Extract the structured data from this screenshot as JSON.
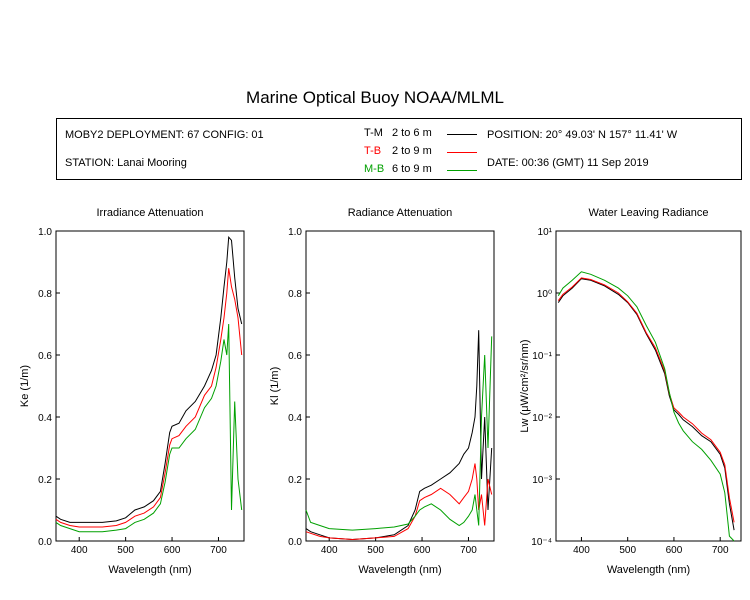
{
  "page": {
    "title": "Marine Optical Buoy NOAA/MLML"
  },
  "info": {
    "deployment": "MOBY2 DEPLOYMENT: 67 CONFIG: 01",
    "station": "STATION: Lanai Mooring",
    "position": "POSITION: 20° 49.03' N   157° 11.41' W",
    "date": "DATE: 00:36 (GMT) 11 Sep 2019",
    "legend": [
      {
        "code": "T-M",
        "depth": "2 to 6  m",
        "color": "#000000"
      },
      {
        "code": "T-B",
        "depth": "2 to 9  m",
        "color": "#ff0000"
      },
      {
        "code": "M-B",
        "depth": "6 to 9  m",
        "color": "#00a000"
      }
    ]
  },
  "chart_data": [
    {
      "type": "line",
      "title": "Irradiance Attenuation",
      "xlabel": "Wavelength (nm)",
      "ylabel": "Ke  (1/m)",
      "xlim": [
        350,
        755
      ],
      "ylim": [
        0,
        1.0
      ],
      "xticks": [
        "400",
        "500",
        "600",
        "700"
      ],
      "yticks": [
        "0.0",
        "0.2",
        "0.4",
        "0.6",
        "0.8",
        "1.0"
      ],
      "series": [
        {
          "name": "T-M",
          "color": "#000000",
          "x": [
            350,
            360,
            380,
            400,
            420,
            450,
            480,
            500,
            520,
            540,
            560,
            575,
            585,
            595,
            600,
            615,
            630,
            650,
            670,
            685,
            695,
            705,
            712,
            718,
            722,
            728,
            735,
            742,
            750
          ],
          "y": [
            0.08,
            0.07,
            0.06,
            0.06,
            0.06,
            0.06,
            0.065,
            0.075,
            0.1,
            0.11,
            0.13,
            0.16,
            0.25,
            0.35,
            0.37,
            0.38,
            0.42,
            0.45,
            0.5,
            0.55,
            0.6,
            0.72,
            0.82,
            0.9,
            0.98,
            0.97,
            0.85,
            0.75,
            0.7
          ]
        },
        {
          "name": "T-B",
          "color": "#ff0000",
          "x": [
            350,
            360,
            380,
            400,
            420,
            450,
            480,
            500,
            520,
            540,
            560,
            575,
            585,
            595,
            600,
            615,
            630,
            650,
            670,
            685,
            695,
            705,
            712,
            718,
            722,
            728,
            735,
            742,
            750
          ],
          "y": [
            0.07,
            0.06,
            0.05,
            0.045,
            0.045,
            0.045,
            0.05,
            0.06,
            0.08,
            0.09,
            0.11,
            0.14,
            0.22,
            0.31,
            0.33,
            0.34,
            0.37,
            0.4,
            0.47,
            0.5,
            0.56,
            0.65,
            0.72,
            0.8,
            0.88,
            0.82,
            0.78,
            0.72,
            0.6
          ]
        },
        {
          "name": "M-B",
          "color": "#00a000",
          "x": [
            350,
            360,
            380,
            400,
            420,
            450,
            480,
            500,
            520,
            540,
            560,
            575,
            585,
            595,
            600,
            615,
            630,
            650,
            670,
            685,
            695,
            705,
            712,
            718,
            722,
            728,
            735,
            742,
            750
          ],
          "y": [
            0.06,
            0.05,
            0.04,
            0.03,
            0.03,
            0.03,
            0.035,
            0.04,
            0.06,
            0.07,
            0.09,
            0.12,
            0.19,
            0.28,
            0.3,
            0.3,
            0.33,
            0.36,
            0.43,
            0.46,
            0.5,
            0.58,
            0.65,
            0.6,
            0.7,
            0.1,
            0.45,
            0.2,
            0.1
          ]
        }
      ]
    },
    {
      "type": "line",
      "title": "Radiance Attenuation",
      "xlabel": "Wavelength (nm)",
      "ylabel": "Kl  (1/m)",
      "xlim": [
        350,
        755
      ],
      "ylim": [
        0,
        1.0
      ],
      "xticks": [
        "400",
        "500",
        "600",
        "700"
      ],
      "yticks": [
        "0.0",
        "0.2",
        "0.4",
        "0.6",
        "0.8",
        "1.0"
      ],
      "series": [
        {
          "name": "T-M",
          "color": "#000000",
          "x": [
            350,
            360,
            380,
            400,
            450,
            500,
            540,
            570,
            585,
            595,
            605,
            620,
            640,
            660,
            680,
            690,
            700,
            708,
            714,
            718,
            722,
            728,
            735,
            742,
            750
          ],
          "y": [
            0.04,
            0.03,
            0.02,
            0.01,
            0.005,
            0.01,
            0.02,
            0.05,
            0.1,
            0.16,
            0.17,
            0.18,
            0.2,
            0.22,
            0.25,
            0.28,
            0.3,
            0.35,
            0.4,
            0.5,
            0.68,
            0.2,
            0.4,
            0.1,
            0.3
          ]
        },
        {
          "name": "T-B",
          "color": "#ff0000",
          "x": [
            350,
            360,
            380,
            400,
            450,
            500,
            540,
            570,
            585,
            595,
            605,
            620,
            640,
            660,
            680,
            690,
            700,
            708,
            714,
            718,
            722,
            728,
            735,
            742,
            750
          ],
          "y": [
            0.03,
            0.025,
            0.015,
            0.01,
            0.005,
            0.01,
            0.015,
            0.04,
            0.08,
            0.13,
            0.14,
            0.15,
            0.17,
            0.15,
            0.12,
            0.14,
            0.16,
            0.2,
            0.25,
            0.2,
            0.1,
            0.15,
            0.05,
            0.2,
            0.15
          ]
        },
        {
          "name": "M-B",
          "color": "#00a000",
          "x": [
            350,
            360,
            380,
            400,
            450,
            500,
            540,
            570,
            585,
            595,
            605,
            620,
            640,
            660,
            680,
            690,
            700,
            708,
            714,
            718,
            722,
            728,
            735,
            742,
            750
          ],
          "y": [
            0.1,
            0.06,
            0.05,
            0.04,
            0.035,
            0.04,
            0.045,
            0.055,
            0.08,
            0.1,
            0.11,
            0.12,
            0.1,
            0.07,
            0.05,
            0.06,
            0.08,
            0.1,
            0.15,
            0.1,
            0.05,
            0.4,
            0.6,
            0.3,
            0.66
          ]
        }
      ]
    },
    {
      "type": "line",
      "title": "Water Leaving Radiance",
      "xlabel": "Wavelength (nm)",
      "ylabel": "Lw  (μW/cm²/sr/nm)",
      "log_y": true,
      "xlim": [
        345,
        745
      ],
      "ylim": [
        0.0001,
        10
      ],
      "xticks": [
        "400",
        "500",
        "600",
        "700"
      ],
      "yticks": [
        "10⁻⁴",
        "10⁻³",
        "10⁻²",
        "10⁻¹",
        "10⁰",
        "10¹"
      ],
      "series": [
        {
          "name": "T-M",
          "color": "#000000",
          "x": [
            350,
            360,
            380,
            400,
            420,
            450,
            480,
            500,
            520,
            540,
            560,
            580,
            590,
            600,
            610,
            620,
            640,
            660,
            680,
            700,
            710,
            720,
            730
          ],
          "y": [
            0.7,
            0.9,
            1.2,
            1.7,
            1.6,
            1.3,
            0.95,
            0.7,
            0.45,
            0.22,
            0.12,
            0.05,
            0.022,
            0.013,
            0.011,
            0.009,
            0.007,
            0.005,
            0.004,
            0.0025,
            0.0015,
            0.0004,
            0.00015
          ]
        },
        {
          "name": "T-B",
          "color": "#ff0000",
          "x": [
            350,
            360,
            380,
            400,
            420,
            450,
            480,
            500,
            520,
            540,
            560,
            580,
            590,
            600,
            610,
            620,
            640,
            660,
            680,
            700,
            710,
            720,
            730
          ],
          "y": [
            0.75,
            0.95,
            1.25,
            1.75,
            1.65,
            1.35,
            1.0,
            0.72,
            0.47,
            0.23,
            0.13,
            0.055,
            0.024,
            0.014,
            0.012,
            0.01,
            0.0078,
            0.0055,
            0.0043,
            0.0027,
            0.0017,
            0.0005,
            0.0002
          ]
        },
        {
          "name": "M-B",
          "color": "#00a000",
          "x": [
            350,
            360,
            380,
            400,
            420,
            450,
            480,
            500,
            520,
            540,
            560,
            580,
            590,
            600,
            610,
            620,
            640,
            660,
            680,
            700,
            710,
            720,
            730
          ],
          "y": [
            0.9,
            1.2,
            1.6,
            2.2,
            2.0,
            1.6,
            1.2,
            0.9,
            0.6,
            0.3,
            0.16,
            0.06,
            0.025,
            0.012,
            0.008,
            0.006,
            0.004,
            0.003,
            0.002,
            0.0012,
            0.0006,
            0.00012,
            0.0001
          ]
        }
      ]
    }
  ]
}
